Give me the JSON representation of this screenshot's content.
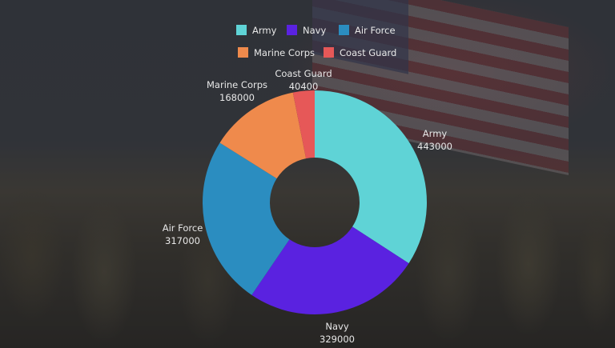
{
  "chart_data": {
    "type": "pie",
    "donut": true,
    "categories": [
      "Army",
      "Navy",
      "Air Force",
      "Marine Corps",
      "Coast Guard"
    ],
    "values": [
      443000,
      329000,
      317000,
      168000,
      40400
    ],
    "colors": [
      "#5fd3d6",
      "#5a22e0",
      "#2b8dc0",
      "#ef8a4c",
      "#e65858"
    ],
    "legend": "top",
    "data_labels": true
  }
}
